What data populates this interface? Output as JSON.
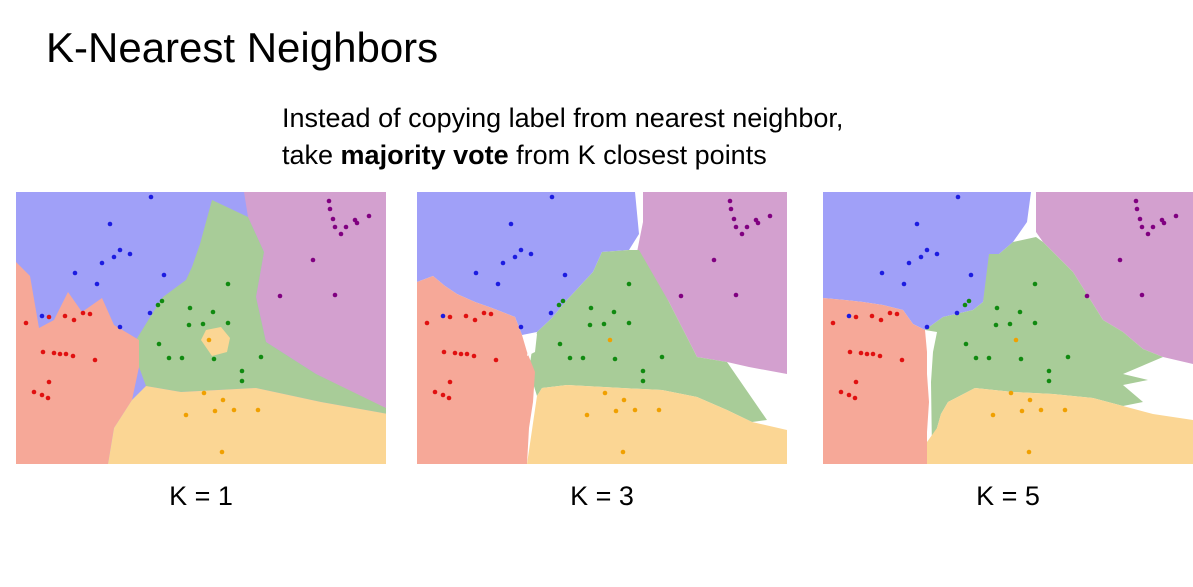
{
  "slide": {
    "title": "K-Nearest Neighbors",
    "subtitle_line1": "Instead of copying label from nearest neighbor,",
    "subtitle_line2_pre": "take ",
    "subtitle_line2_bold": "majority vote",
    "subtitle_line2_post": " from K closest points"
  },
  "panels": [
    {
      "label": "K = 1",
      "k": 1
    },
    {
      "label": "K = 3",
      "k": 3
    },
    {
      "label": "K = 5",
      "k": 5
    }
  ],
  "class_colors": {
    "blue": {
      "region": "#a0a0f8",
      "point": "#1c1ce0"
    },
    "red": {
      "region": "#f6a898",
      "point": "#e01010"
    },
    "green": {
      "region": "#a8cc98",
      "point": "#108a10"
    },
    "purple": {
      "region": "#d3a0cf",
      "point": "#800080"
    },
    "orange": {
      "region": "#fbd694",
      "point": "#f0a000"
    }
  }
}
